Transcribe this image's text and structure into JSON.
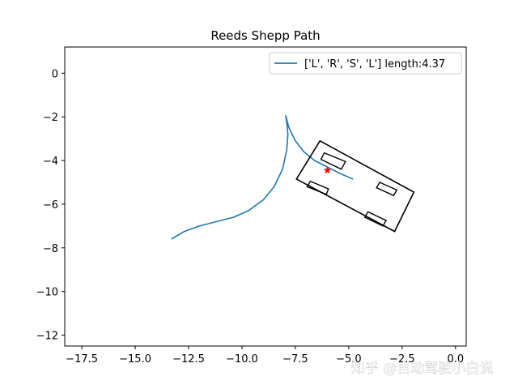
{
  "chart_data": {
    "type": "line",
    "title": "Reeds Shepp Path",
    "xlim": [
      -18.3,
      0.5
    ],
    "ylim": [
      -12.5,
      1.2
    ],
    "xticks": [
      -17.5,
      -15.0,
      -12.5,
      -10.0,
      -7.5,
      -5.0,
      -2.5,
      0.0
    ],
    "xtick_labels": [
      "−17.5",
      "−15.0",
      "−12.5",
      "−10.0",
      "−7.5",
      "−5.0",
      "−2.5",
      "0.0"
    ],
    "yticks": [
      0,
      -2,
      -4,
      -6,
      -8,
      -10,
      -12
    ],
    "ytick_labels": [
      "0",
      "−2",
      "−4",
      "−6",
      "−8",
      "−10",
      "−12"
    ],
    "grid": false,
    "legend_position": "top-right",
    "series": [
      {
        "name": "['L', 'R', 'S', 'L'] length:4.37",
        "color": "#1f77b4",
        "points": [
          [
            -13.3,
            -7.6
          ],
          [
            -12.7,
            -7.25
          ],
          [
            -12.0,
            -7.0
          ],
          [
            -11.2,
            -6.8
          ],
          [
            -10.4,
            -6.6
          ],
          [
            -9.7,
            -6.3
          ],
          [
            -9.0,
            -5.8
          ],
          [
            -8.5,
            -5.2
          ],
          [
            -8.1,
            -4.4
          ],
          [
            -7.9,
            -3.5
          ],
          [
            -7.85,
            -2.8
          ],
          [
            -7.9,
            -2.3
          ],
          [
            -7.95,
            -1.95
          ],
          [
            -7.8,
            -2.5
          ],
          [
            -7.5,
            -3.1
          ],
          [
            -7.1,
            -3.6
          ],
          [
            -6.6,
            -4.0
          ],
          [
            -6.0,
            -4.3
          ],
          [
            -5.4,
            -4.6
          ],
          [
            -4.8,
            -4.85
          ]
        ]
      }
    ],
    "vehicle": {
      "color": "#000000",
      "outline": [
        [
          -6.35,
          -3.1
        ],
        [
          -1.95,
          -5.45
        ],
        [
          -2.85,
          -7.25
        ],
        [
          -7.45,
          -4.85
        ]
      ],
      "wheels": [
        [
          [
            -6.15,
            -3.65
          ],
          [
            -5.15,
            -4.05
          ],
          [
            -5.35,
            -4.4
          ],
          [
            -6.3,
            -3.95
          ]
        ],
        [
          [
            -3.55,
            -5.0
          ],
          [
            -2.75,
            -5.35
          ],
          [
            -2.9,
            -5.6
          ],
          [
            -3.7,
            -5.25
          ]
        ],
        [
          [
            -6.8,
            -4.95
          ],
          [
            -5.95,
            -5.3
          ],
          [
            -6.05,
            -5.55
          ],
          [
            -6.95,
            -5.2
          ]
        ],
        [
          [
            -4.1,
            -6.35
          ],
          [
            -3.25,
            -6.75
          ],
          [
            -3.4,
            -7.0
          ],
          [
            -4.25,
            -6.6
          ]
        ]
      ]
    },
    "marker": {
      "x": -6.0,
      "y": -4.45,
      "color": "#ff0000",
      "symbol": "star"
    }
  },
  "watermark": "知乎 @自动驾驶小白说"
}
